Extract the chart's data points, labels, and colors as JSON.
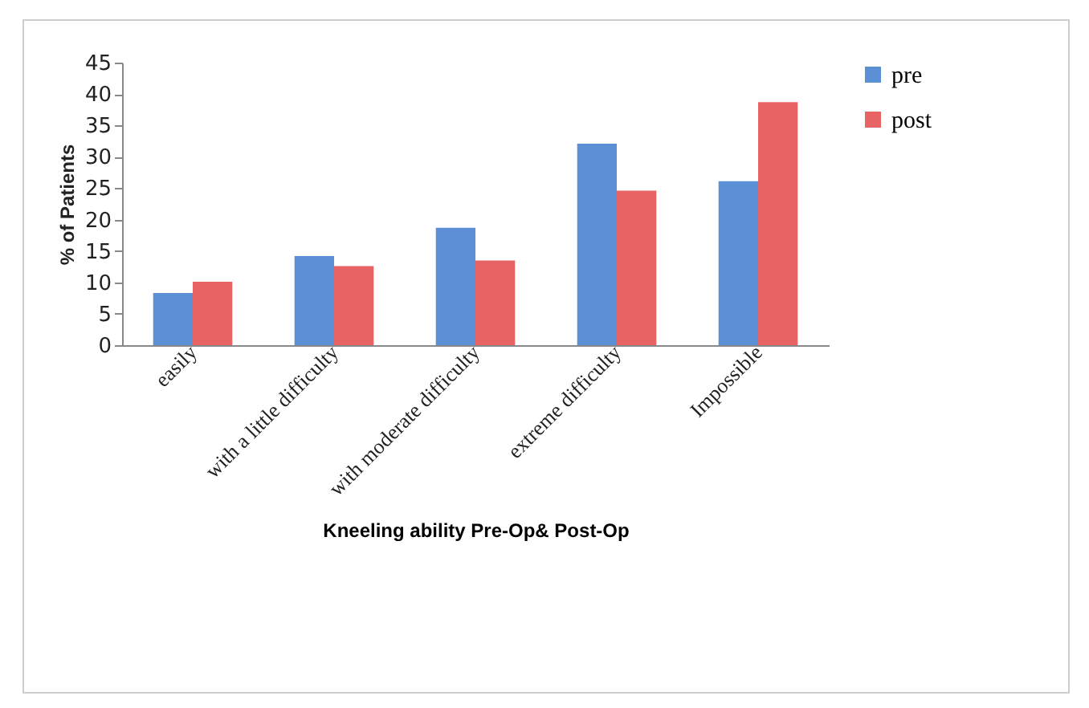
{
  "chart_data": {
    "type": "bar",
    "xlabel": "Kneeling ability Pre-Op& Post-Op",
    "ylabel": "% of Patients",
    "categories": [
      "easily",
      "with a little difficulty",
      "with moderate difficulty",
      "extreme difficulty",
      "Impossible"
    ],
    "series": [
      {
        "name": "pre",
        "color": "#5b8fd6",
        "values": [
          8.3,
          14.2,
          18.7,
          32.1,
          26.1
        ]
      },
      {
        "name": "post",
        "color": "#e86464",
        "values": [
          10.1,
          12.6,
          13.5,
          24.6,
          38.7
        ]
      }
    ],
    "ylim": [
      0,
      45
    ],
    "yticks": [
      0,
      5,
      10,
      15,
      20,
      25,
      30,
      35,
      40,
      45
    ],
    "grid": false,
    "legend": "right"
  }
}
